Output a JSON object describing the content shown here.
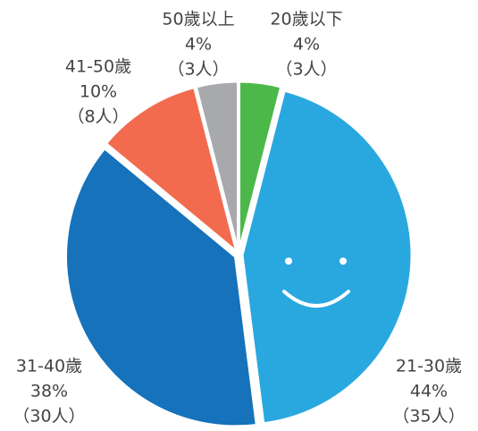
{
  "chart_data": {
    "type": "pie",
    "categories": [
      "20歲以下",
      "21-30歲",
      "31-40歲",
      "41-50歲",
      "50歲以上"
    ],
    "values": [
      4,
      44,
      38,
      10,
      4
    ],
    "value_labels": [
      "4%",
      "44%",
      "38%",
      "10%",
      "4%"
    ],
    "count_labels": [
      "（3人）",
      "（35人）",
      "（30人）",
      "（8人）",
      "（3人）"
    ],
    "colors": [
      "#4cb84a",
      "#29a8e0",
      "#1572bb",
      "#f26b4f",
      "#a8a9ad"
    ]
  }
}
